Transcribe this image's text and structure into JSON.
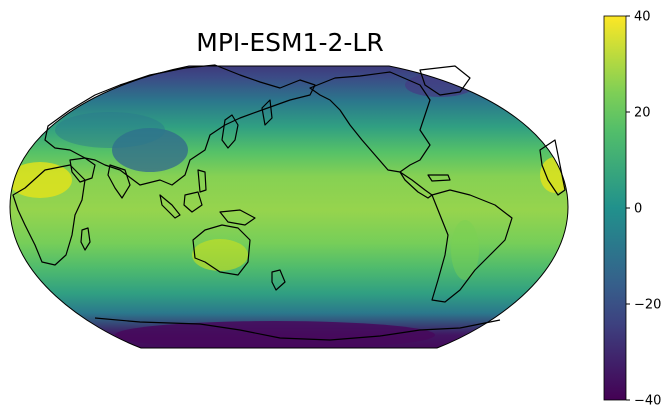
{
  "title": "MPI-ESM1-2-LR",
  "projection": "Robinson",
  "central_longitude": 180,
  "colormap": "viridis",
  "colormap_stops": [
    "#440154",
    "#3b528b",
    "#21918c",
    "#5ec962",
    "#fde725"
  ],
  "colorbar": {
    "min": -40,
    "max": 40,
    "ticks": [
      {
        "value": 40,
        "label": "40"
      },
      {
        "value": 20,
        "label": "20"
      },
      {
        "value": 0,
        "label": "0"
      },
      {
        "value": -20,
        "label": "−20"
      },
      {
        "value": -40,
        "label": "−40"
      }
    ]
  },
  "coastline_color": "#000000",
  "field_zonal_profile": [
    {
      "lat": -90,
      "value": -40
    },
    {
      "lat": -75,
      "value": -35
    },
    {
      "lat": -62,
      "value": -8
    },
    {
      "lat": -50,
      "value": 5
    },
    {
      "lat": -35,
      "value": 15
    },
    {
      "lat": -20,
      "value": 23
    },
    {
      "lat": 0,
      "value": 27
    },
    {
      "lat": 20,
      "value": 25
    },
    {
      "lat": 35,
      "value": 17
    },
    {
      "lat": 50,
      "value": 5
    },
    {
      "lat": 65,
      "value": -8
    },
    {
      "lat": 80,
      "value": -22
    },
    {
      "lat": 90,
      "value": -28
    }
  ]
}
